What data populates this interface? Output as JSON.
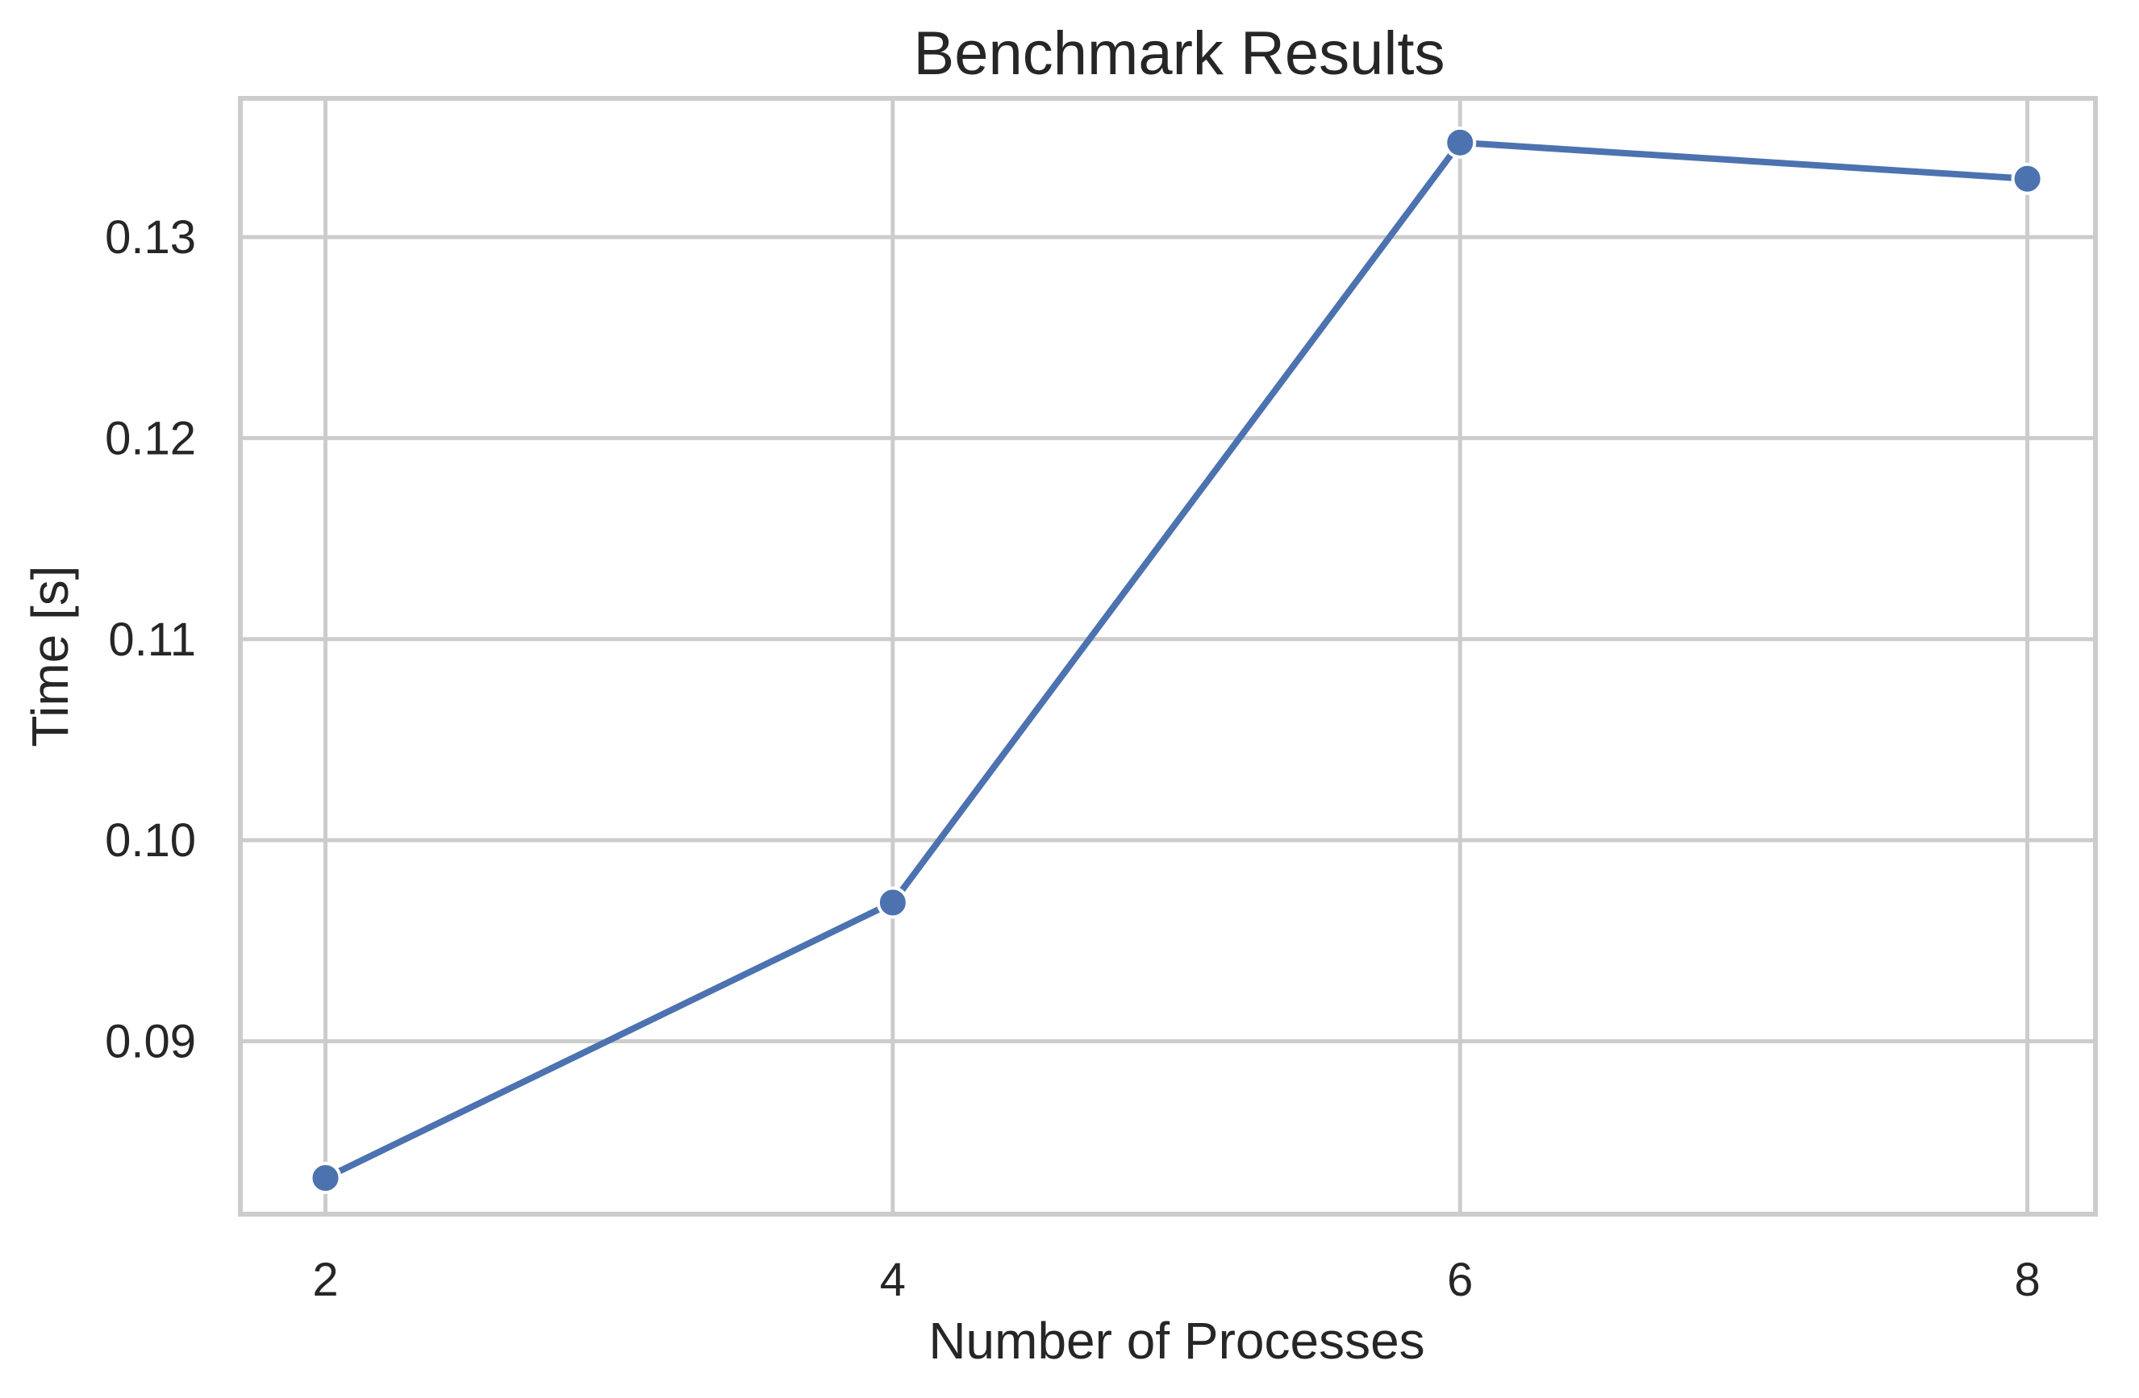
{
  "chart_data": {
    "type": "line",
    "title": "Benchmark Results",
    "xlabel": "Number of Processes",
    "ylabel": "Time [s]",
    "x": [
      2,
      4,
      6,
      8
    ],
    "xticks": [
      2,
      4,
      6,
      8
    ],
    "xtick_labels": [
      "2",
      "4",
      "6",
      "8"
    ],
    "yticks": [
      0.09,
      0.1,
      0.11,
      0.12,
      0.13
    ],
    "ytick_labels": [
      "0.09",
      "0.10",
      "0.11",
      "0.12",
      "0.13"
    ],
    "xlim": [
      1.7,
      8.24
    ],
    "ylim": [
      0.0814,
      0.1369
    ],
    "grid": true,
    "series": [
      {
        "values": [
          0.0832,
          0.0969,
          0.1347,
          0.1329
        ],
        "color": "#4c72b0",
        "marker": "circle"
      }
    ],
    "colors": {
      "line": "#4c72b0",
      "grid": "#cccccc",
      "frame": "#cccccc",
      "text": "#262626",
      "marker_edge": "#ffffff"
    }
  }
}
